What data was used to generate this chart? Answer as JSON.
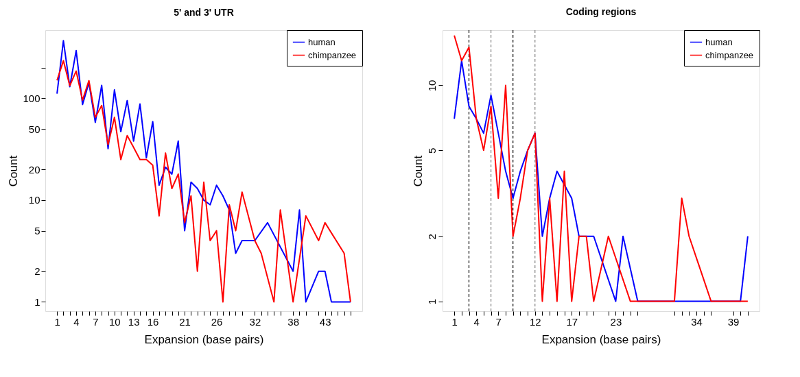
{
  "chart_data": [
    {
      "type": "line",
      "title": "5' and 3' UTR",
      "xlabel": "Expansion (base pairs)",
      "ylabel": "Count",
      "log": "y",
      "grid": false,
      "legend": "top right",
      "line_style": "solid",
      "marker": "none",
      "xlim": [
        -0.84,
        48.84
      ],
      "ylim": [
        0.81,
        467
      ],
      "xticks": [
        1,
        {
          "value": 2,
          "label": null
        },
        {
          "value": 3,
          "label": null
        },
        4,
        {
          "value": 5,
          "label": null
        },
        {
          "value": 6,
          "label": null
        },
        7,
        {
          "value": 8,
          "label": null
        },
        {
          "value": 9,
          "label": null
        },
        10,
        {
          "value": 11,
          "label": null
        },
        {
          "value": 12,
          "label": null
        },
        13,
        {
          "value": 14,
          "label": null
        },
        {
          "value": 15,
          "label": null
        },
        16,
        {
          "value": 17,
          "label": null
        },
        {
          "value": 18,
          "label": null
        },
        {
          "value": 19,
          "label": null
        },
        {
          "value": 20,
          "label": null
        },
        21,
        {
          "value": 22,
          "label": null
        },
        {
          "value": 23,
          "label": null
        },
        {
          "value": 24,
          "label": null
        },
        {
          "value": 25,
          "label": null
        },
        26,
        {
          "value": 27,
          "label": null
        },
        {
          "value": 28,
          "label": null
        },
        {
          "value": 29,
          "label": null
        },
        {
          "value": 30,
          "label": null
        },
        32,
        {
          "value": 33,
          "label": null
        },
        {
          "value": 34,
          "label": null
        },
        {
          "value": 35,
          "label": null
        },
        {
          "value": 36,
          "label": null
        },
        38,
        {
          "value": 39,
          "label": null
        },
        {
          "value": 40,
          "label": null
        },
        {
          "value": 42,
          "label": null
        },
        43,
        {
          "value": 44,
          "label": null
        },
        {
          "value": 45,
          "label": null
        },
        {
          "value": 46,
          "label": null
        },
        {
          "value": 47,
          "label": null
        }
      ],
      "yticks": [
        1,
        2,
        5,
        10,
        20,
        50,
        100,
        {
          "value": 200,
          "label": null
        }
      ],
      "series": [
        {
          "name": "human",
          "color": "#0000ff",
          "x": [
            1,
            2,
            3,
            4,
            5,
            6,
            7,
            8,
            9,
            10,
            11,
            12,
            13,
            14,
            15,
            16,
            17,
            18,
            19,
            20,
            21,
            22,
            23,
            24,
            25,
            26,
            27,
            28,
            29,
            30,
            32,
            34,
            38,
            39,
            40,
            42,
            43,
            44,
            47
          ],
          "values": [
            111,
            368,
            130,
            294,
            87,
            142,
            58,
            134,
            32,
            121,
            47,
            95,
            38,
            88,
            26,
            59,
            14,
            21,
            18,
            38,
            5,
            15,
            13,
            10,
            9,
            14,
            11,
            8,
            3,
            4,
            4,
            6,
            2,
            8,
            1,
            2,
            2,
            1,
            1
          ]
        },
        {
          "name": "chimpanzee",
          "color": "#ff0000",
          "x": [
            1,
            2,
            3,
            4,
            5,
            6,
            7,
            8,
            9,
            10,
            11,
            12,
            13,
            14,
            15,
            16,
            17,
            18,
            19,
            20,
            21,
            22,
            23,
            24,
            25,
            26,
            27,
            28,
            29,
            30,
            32,
            33,
            35,
            36,
            38,
            40,
            42,
            43,
            46,
            47
          ],
          "values": [
            150,
            234,
            133,
            185,
            96,
            149,
            65,
            85,
            35,
            65,
            25,
            43,
            33,
            25,
            25,
            22,
            7,
            29,
            13,
            18,
            6,
            11,
            2,
            15,
            4,
            5,
            1,
            9,
            5,
            12,
            4,
            3,
            1,
            8,
            1,
            7,
            4,
            6,
            3,
            1
          ]
        }
      ]
    },
    {
      "type": "line",
      "title": "Coding regions",
      "xlabel": "Expansion (base pairs)",
      "ylabel": "Count",
      "log": "y",
      "grid": false,
      "legend": "top right",
      "line_style": "solid",
      "marker": "none",
      "xlim": [
        -0.6,
        42.6
      ],
      "ylim": [
        0.9,
        18
      ],
      "xticks": [
        1,
        {
          "value": 2,
          "label": null
        },
        {
          "value": 3,
          "label": null
        },
        4,
        {
          "value": 5,
          "label": null
        },
        {
          "value": 6,
          "label": null
        },
        7,
        {
          "value": 8,
          "label": null
        },
        {
          "value": 9,
          "label": null
        },
        {
          "value": 10,
          "label": null
        },
        {
          "value": 11,
          "label": null
        },
        12,
        {
          "value": 13,
          "label": null
        },
        {
          "value": 14,
          "label": null
        },
        {
          "value": 15,
          "label": null
        },
        {
          "value": 16,
          "label": null
        },
        17,
        {
          "value": 18,
          "label": null
        },
        {
          "value": 19,
          "label": null
        },
        {
          "value": 20,
          "label": null
        },
        {
          "value": 22,
          "label": null
        },
        23,
        {
          "value": 24,
          "label": null
        },
        {
          "value": 25,
          "label": null
        },
        {
          "value": 26,
          "label": null
        },
        {
          "value": 31,
          "label": null
        },
        {
          "value": 32,
          "label": null
        },
        {
          "value": 33,
          "label": null
        },
        34,
        {
          "value": 35,
          "label": null
        },
        {
          "value": 36,
          "label": null
        },
        39,
        {
          "value": 40,
          "label": null
        },
        {
          "value": 41,
          "label": null
        }
      ],
      "yticks": [
        1,
        2,
        5,
        10
      ],
      "ref_lines": [
        {
          "axis": "x",
          "value": 3,
          "label": null,
          "color": "#000000",
          "line_style": "dashed"
        },
        {
          "axis": "x",
          "value": 6,
          "label": null,
          "color": "#808080",
          "line_style": "dashed"
        },
        {
          "axis": "x",
          "value": 9,
          "label": null,
          "color": "#000000",
          "line_style": "dashed"
        },
        {
          "axis": "x",
          "value": 12,
          "label": null,
          "color": "#808080",
          "line_style": "dashed"
        }
      ],
      "series": [
        {
          "name": "human",
          "color": "#0000ff",
          "x": [
            1,
            2,
            3,
            4,
            5,
            6,
            7,
            8,
            9,
            10,
            11,
            12,
            13,
            14,
            15,
            17,
            18,
            19,
            20,
            23,
            24,
            26,
            40,
            41
          ],
          "values": [
            7,
            13,
            8,
            7,
            6,
            9,
            6,
            4,
            3,
            4,
            5,
            6,
            2,
            3,
            4,
            3,
            2,
            2,
            2,
            1,
            2,
            1,
            1,
            2
          ]
        },
        {
          "name": "chimpanzee",
          "color": "#ff0000",
          "x": [
            1,
            2,
            3,
            4,
            5,
            6,
            7,
            8,
            9,
            10,
            11,
            12,
            13,
            14,
            15,
            16,
            17,
            18,
            19,
            20,
            22,
            25,
            31,
            32,
            33,
            36,
            41
          ],
          "values": [
            17,
            13,
            15,
            7,
            5,
            8,
            3,
            10,
            2,
            3,
            5,
            6,
            1,
            3,
            1,
            4,
            1,
            2,
            2,
            1,
            2,
            1,
            1,
            3,
            2,
            1,
            1
          ]
        }
      ]
    }
  ]
}
